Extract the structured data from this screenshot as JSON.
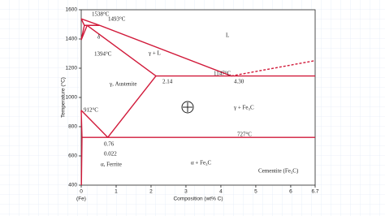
{
  "chart_data": {
    "type": "line",
    "x_label": "Composition (wt% C)",
    "y_label": "Temperature (°C)",
    "x_sub_label": "(Fe)",
    "xlim": [
      0,
      6.7
    ],
    "xticks": [
      0,
      1,
      2,
      3,
      4,
      5,
      6,
      6.7
    ],
    "ylim": [
      400,
      1600
    ],
    "yticks": [
      400,
      600,
      800,
      1000,
      1200,
      1400,
      1600
    ],
    "series": [
      {
        "color": "#d11a3a",
        "x": [
          0,
          0.53,
          4.3
        ],
        "values": [
          1538,
          1493,
          1147
        ]
      },
      {
        "color": "#d11a3a",
        "x": [
          4.3,
          6.7
        ],
        "values": [
          1147,
          1252
        ],
        "dashed": true
      },
      {
        "color": "#d11a3a",
        "x": [
          0,
          0.09,
          0.53
        ],
        "values": [
          1538,
          1493,
          1493
        ]
      },
      {
        "color": "#d11a3a",
        "x": [
          0,
          0.17
        ],
        "values": [
          1394,
          1493
        ]
      },
      {
        "color": "#d11a3a",
        "x": [
          0,
          0.09
        ],
        "values": [
          1394,
          1493
        ]
      },
      {
        "color": "#d11a3a",
        "x": [
          0.17,
          2.14
        ],
        "values": [
          1493,
          1147
        ]
      },
      {
        "color": "#d11a3a",
        "x": [
          2.14,
          6.7
        ],
        "values": [
          1147,
          1147
        ]
      },
      {
        "color": "#d11a3a",
        "x": [
          2.14,
          0.76
        ],
        "values": [
          1147,
          727
        ]
      },
      {
        "color": "#d11a3a",
        "x": [
          0,
          0.76
        ],
        "values": [
          912,
          727
        ]
      },
      {
        "color": "#d11a3a",
        "x": [
          0.022,
          6.7
        ],
        "values": [
          727,
          727
        ]
      },
      {
        "color": "#d11a3a",
        "x": [
          0,
          0.022,
          0.005
        ],
        "values": [
          912,
          727,
          400
        ]
      }
    ],
    "annotations": [
      "1538°C",
      "1493°C",
      "1394°C",
      "δ",
      "L",
      "γ + L",
      "γ, Austenite",
      "1147°C",
      "2.14",
      "4.30",
      "γ + Fe₃C",
      "912°C",
      "727°C",
      "0.76",
      "0.022",
      "α, Ferrite",
      "α + Fe₃C",
      "Cementite (Fe₃C)"
    ]
  }
}
